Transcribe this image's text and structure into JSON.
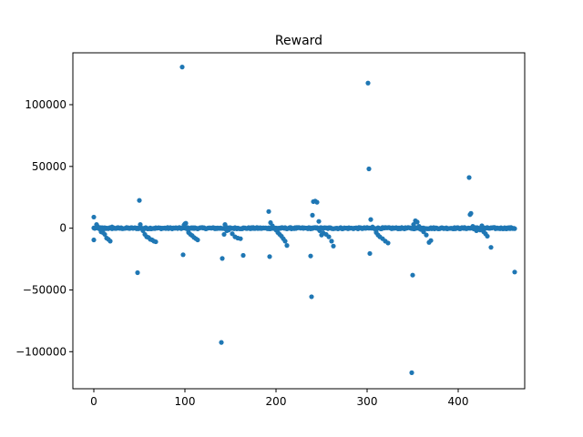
{
  "chart_data": {
    "type": "scatter",
    "title": "Reward",
    "xlabel": "",
    "ylabel": "",
    "xlim": [
      -23,
      473
    ],
    "ylim": [
      -130000,
      142000
    ],
    "grid": false,
    "marker_color": "#1f77b4",
    "x_ticks": [
      0,
      100,
      200,
      300,
      400
    ],
    "x_tick_labels": [
      "0",
      "100",
      "200",
      "300",
      "400"
    ],
    "y_ticks": [
      -100000,
      -50000,
      0,
      50000,
      100000
    ],
    "y_tick_labels": [
      "−100000",
      "−50000",
      "0",
      "50000",
      "100000"
    ],
    "outliers": [
      [
        0,
        9000
      ],
      [
        0,
        -9500
      ],
      [
        3,
        3000
      ],
      [
        4,
        1500
      ],
      [
        6,
        -500
      ],
      [
        8,
        -3000
      ],
      [
        10,
        -3500
      ],
      [
        12,
        -5000
      ],
      [
        14,
        -8000
      ],
      [
        16,
        -9000
      ],
      [
        18,
        -10500
      ],
      [
        20,
        1000
      ],
      [
        48,
        -36000
      ],
      [
        50,
        22500
      ],
      [
        51,
        3000
      ],
      [
        52,
        0
      ],
      [
        54,
        -2000
      ],
      [
        56,
        -5000
      ],
      [
        58,
        -7000
      ],
      [
        60,
        -7500
      ],
      [
        62,
        -9000
      ],
      [
        64,
        -9500
      ],
      [
        66,
        -10500
      ],
      [
        68,
        -11000
      ],
      [
        97,
        130500
      ],
      [
        98,
        -21500
      ],
      [
        99,
        2500
      ],
      [
        100,
        3500
      ],
      [
        101,
        4000
      ],
      [
        104,
        -3500
      ],
      [
        106,
        -5000
      ],
      [
        108,
        -6000
      ],
      [
        110,
        -7500
      ],
      [
        112,
        -8500
      ],
      [
        114,
        -9500
      ],
      [
        140,
        -92500
      ],
      [
        141,
        -24500
      ],
      [
        143,
        -5000
      ],
      [
        144,
        3000
      ],
      [
        146,
        -2000
      ],
      [
        148,
        -1500
      ],
      [
        152,
        -4500
      ],
      [
        155,
        -7000
      ],
      [
        158,
        -8000
      ],
      [
        161,
        -8500
      ],
      [
        164,
        -22000
      ],
      [
        192,
        13500
      ],
      [
        194,
        4500
      ],
      [
        196,
        2000
      ],
      [
        198,
        0
      ],
      [
        200,
        -1500
      ],
      [
        202,
        -3500
      ],
      [
        204,
        -5000
      ],
      [
        206,
        -6500
      ],
      [
        208,
        -8500
      ],
      [
        210,
        -10500
      ],
      [
        212,
        -14000
      ],
      [
        193,
        -23000
      ],
      [
        238,
        -22500
      ],
      [
        239,
        -55500
      ],
      [
        240,
        10500
      ],
      [
        241,
        21500
      ],
      [
        243,
        22000
      ],
      [
        245,
        21000
      ],
      [
        247,
        5500
      ],
      [
        248,
        -2000
      ],
      [
        250,
        -5500
      ],
      [
        252,
        -4000
      ],
      [
        255,
        -5000
      ],
      [
        258,
        -7000
      ],
      [
        261,
        -10500
      ],
      [
        263,
        -14500
      ],
      [
        301,
        117500
      ],
      [
        302,
        48000
      ],
      [
        303,
        -20500
      ],
      [
        304,
        7000
      ],
      [
        306,
        1000
      ],
      [
        308,
        -500
      ],
      [
        310,
        -3500
      ],
      [
        312,
        -5500
      ],
      [
        314,
        -7000
      ],
      [
        317,
        -8500
      ],
      [
        320,
        -10500
      ],
      [
        323,
        -12000
      ],
      [
        349,
        -117000
      ],
      [
        350,
        -38000
      ],
      [
        351,
        3000
      ],
      [
        353,
        6000
      ],
      [
        355,
        5000
      ],
      [
        357,
        1500
      ],
      [
        359,
        -1000
      ],
      [
        362,
        -3000
      ],
      [
        365,
        -5500
      ],
      [
        368,
        -11500
      ],
      [
        370,
        -10000
      ],
      [
        412,
        41000
      ],
      [
        413,
        11000
      ],
      [
        414,
        12000
      ],
      [
        416,
        1500
      ],
      [
        418,
        0
      ],
      [
        420,
        -2000
      ],
      [
        424,
        -1500
      ],
      [
        426,
        2000
      ],
      [
        428,
        -3000
      ],
      [
        430,
        -4500
      ],
      [
        432,
        -6500
      ],
      [
        436,
        -15500
      ],
      [
        462,
        -35500
      ]
    ]
  }
}
